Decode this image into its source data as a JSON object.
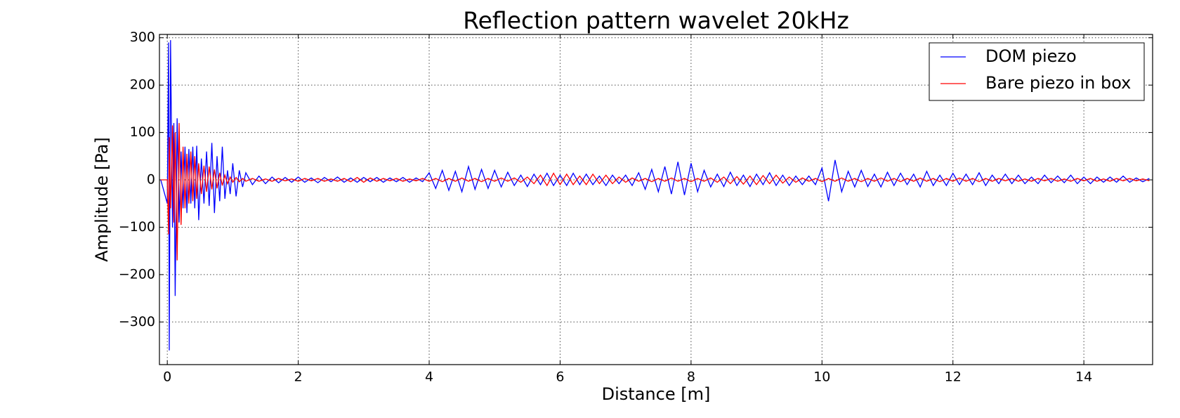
{
  "chart_data": {
    "type": "line",
    "title": "Reflection pattern wavelet 20kHz",
    "xlabel": "Distance [m]",
    "ylabel": "Amplitude [Pa]",
    "xlim": [
      -0.12,
      15.05
    ],
    "ylim": [
      -390,
      307
    ],
    "xticks": [
      0,
      2,
      4,
      6,
      8,
      10,
      12,
      14
    ],
    "yticks": [
      {
        "value": -300,
        "label": "−300"
      },
      {
        "value": -200,
        "label": "−200"
      },
      {
        "value": -100,
        "label": "−100"
      },
      0,
      100,
      200,
      300
    ],
    "grid": true,
    "legend": "upper right",
    "x": [
      -0.1,
      0,
      0.02,
      0.03,
      0.05,
      0.08,
      0.1,
      0.12,
      0.15,
      0.18,
      0.21,
      0.24,
      0.27,
      0.3,
      0.33,
      0.36,
      0.39,
      0.42,
      0.45,
      0.48,
      0.52,
      0.56,
      0.6,
      0.64,
      0.68,
      0.72,
      0.76,
      0.8,
      0.84,
      0.88,
      0.92,
      0.96,
      1.0,
      1.05,
      1.1,
      1.15,
      1.2,
      1.3,
      1.4,
      1.5,
      1.6,
      1.7,
      1.8,
      1.9,
      2.0,
      2.1,
      2.2,
      2.3,
      2.4,
      2.5,
      2.6,
      2.7,
      2.8,
      2.9,
      3.0,
      3.1,
      3.2,
      3.3,
      3.4,
      3.5,
      3.6,
      3.7,
      3.8,
      3.9,
      4.0,
      4.1,
      4.2,
      4.3,
      4.4,
      4.5,
      4.6,
      4.7,
      4.8,
      4.9,
      5.0,
      5.1,
      5.2,
      5.3,
      5.4,
      5.5,
      5.6,
      5.7,
      5.8,
      5.9,
      6.0,
      6.1,
      6.2,
      6.3,
      6.4,
      6.5,
      6.6,
      6.7,
      6.8,
      6.9,
      7.0,
      7.1,
      7.2,
      7.3,
      7.4,
      7.5,
      7.6,
      7.7,
      7.8,
      7.9,
      8.0,
      8.1,
      8.2,
      8.3,
      8.4,
      8.5,
      8.6,
      8.7,
      8.8,
      8.9,
      9.0,
      9.1,
      9.2,
      9.3,
      9.4,
      9.5,
      9.6,
      9.7,
      9.8,
      9.9,
      10.0,
      10.1,
      10.2,
      10.3,
      10.4,
      10.5,
      10.6,
      10.7,
      10.8,
      10.9,
      11.0,
      11.1,
      11.2,
      11.3,
      11.4,
      11.5,
      11.6,
      11.7,
      11.8,
      11.9,
      12.0,
      12.1,
      12.2,
      12.3,
      12.4,
      12.5,
      12.6,
      12.7,
      12.8,
      12.9,
      13.0,
      13.1,
      13.2,
      13.3,
      13.4,
      13.5,
      13.6,
      13.7,
      13.8,
      13.9,
      14.0,
      14.1,
      14.2,
      14.3,
      14.4,
      14.5,
      14.6,
      14.7,
      14.8,
      14.9,
      15.0
    ],
    "series": [
      {
        "name": "DOM piezo",
        "color": "#0000ff",
        "values": [
          0,
          -50,
          290,
          -360,
          295,
          -100,
          120,
          -245,
          130,
          -90,
          60,
          -60,
          70,
          -70,
          65,
          -50,
          70,
          -60,
          72,
          -85,
          45,
          -50,
          60,
          -55,
          78,
          -70,
          50,
          -45,
          70,
          -40,
          20,
          -30,
          35,
          -35,
          20,
          -15,
          15,
          -10,
          8,
          -8,
          6,
          -6,
          5,
          -5,
          6,
          -5,
          4,
          -6,
          5,
          -4,
          6,
          -5,
          4,
          -5,
          5,
          -4,
          5,
          -5,
          4,
          -4,
          5,
          -5,
          4,
          -4,
          15,
          -18,
          20,
          -22,
          18,
          -25,
          28,
          -20,
          22,
          -18,
          20,
          -15,
          16,
          -12,
          10,
          -14,
          12,
          -10,
          14,
          -12,
          10,
          -12,
          14,
          -10,
          12,
          -10,
          8,
          -12,
          10,
          -8,
          10,
          -12,
          15,
          -20,
          22,
          -25,
          28,
          -30,
          38,
          -32,
          35,
          -25,
          20,
          -15,
          12,
          -14,
          16,
          -12,
          10,
          -14,
          12,
          -10,
          15,
          -12,
          10,
          -12,
          8,
          -10,
          8,
          -10,
          25,
          -45,
          42,
          -25,
          18,
          -15,
          20,
          -14,
          12,
          -15,
          16,
          -12,
          14,
          -10,
          12,
          -15,
          18,
          -12,
          10,
          -12,
          14,
          -10,
          12,
          -10,
          15,
          -12,
          10,
          -8,
          12,
          -8,
          10,
          -8,
          6,
          -8,
          10,
          -6,
          8,
          -6,
          10,
          -8,
          6,
          -8,
          6,
          -5,
          6,
          -5,
          8,
          -5,
          4,
          -4,
          3
        ]
      },
      {
        "name": "Bare piezo in box",
        "color": "#ff0000",
        "values": [
          0,
          0,
          -115,
          90,
          -60,
          115,
          -90,
          100,
          -170,
          120,
          -95,
          70,
          -60,
          55,
          -50,
          60,
          -45,
          50,
          -40,
          35,
          -30,
          30,
          -25,
          28,
          -20,
          22,
          -18,
          15,
          -12,
          10,
          -8,
          6,
          -5,
          5,
          -4,
          3,
          -3,
          3,
          -3,
          2,
          -3,
          3,
          -2,
          2,
          -3,
          3,
          -2,
          3,
          -3,
          2,
          -3,
          3,
          -4,
          5,
          -5,
          4,
          -3,
          3,
          -2,
          3,
          -3,
          2,
          -2,
          3,
          -3,
          3,
          -4,
          3,
          -3,
          4,
          -3,
          3,
          -4,
          3,
          -3,
          4,
          -3,
          4,
          -5,
          6,
          -8,
          10,
          -12,
          14,
          -10,
          12,
          -10,
          8,
          -10,
          12,
          -8,
          10,
          -8,
          6,
          -5,
          4,
          -3,
          3,
          -4,
          3,
          -3,
          4,
          -3,
          3,
          -4,
          3,
          -3,
          4,
          -5,
          6,
          -8,
          7,
          -9,
          8,
          -10,
          9,
          -8,
          10,
          -7,
          6,
          -5,
          4,
          -3,
          3,
          -4,
          3,
          -3,
          4,
          -3,
          3,
          -4,
          3,
          -3,
          4,
          -3,
          3,
          -4,
          3,
          -3,
          4,
          -3,
          3,
          -4,
          3,
          -3,
          4,
          -3,
          3,
          -4,
          3,
          -3,
          3,
          -2,
          3,
          -3,
          2,
          -3,
          3,
          -2,
          3,
          -3,
          2,
          -3,
          3,
          -2,
          3,
          -3,
          2,
          -3,
          3,
          -2,
          3,
          -2,
          2,
          -2
        ]
      }
    ]
  }
}
